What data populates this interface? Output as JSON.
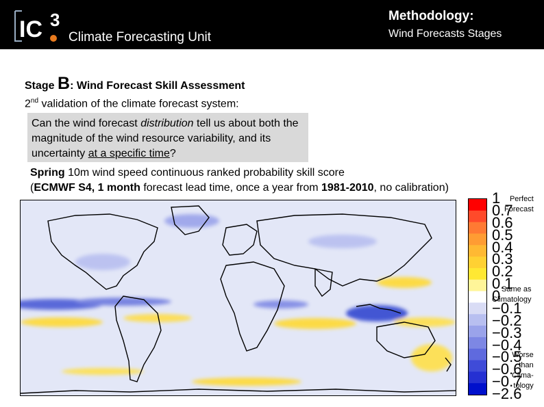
{
  "header": {
    "logo_text": "IC3",
    "unit": "Climate Forecasting Unit",
    "methodology_title": "Methodology:",
    "methodology_subtitle": "Wind Forecasts Stages"
  },
  "stage": {
    "prefix": "Stage",
    "letter": "B",
    "title": ": Wind Forecast Skill Assessment"
  },
  "validation": {
    "num": "2",
    "sup": "nd",
    "text": " validation of the climate forecast system:"
  },
  "question": {
    "p1": "Can the wind forecast ",
    "p2": "distribution",
    "p3": " tell us about both the magnitude of the wind resource variability, and its uncertainty ",
    "p4": "at a specific time",
    "p5": "?"
  },
  "caption": {
    "l1_bold": "Spring",
    "l1_rest": " 10m wind speed continuous ranked probability skill score",
    "l2_open": "(",
    "l2_b1": "ECMWF S4, 1 month",
    "l2_t1": " forecast lead time, once a year from ",
    "l2_b2": "1981-2010",
    "l2_t2": ", no calibration)"
  },
  "colorbar": {
    "ticks": [
      "1",
      "0.7",
      "0.6",
      "0.5",
      "0.4",
      "0.3",
      "0.2",
      "0.1",
      "0",
      "−0.1",
      "−0.2",
      "−0.3",
      "−0.4",
      "−0.5",
      "−0.6",
      "−0.7",
      "−2.6"
    ],
    "colors": [
      "#ff0000",
      "#ff4a2a",
      "#ff7a33",
      "#ff9c33",
      "#ffb933",
      "#ffd133",
      "#ffe833",
      "#fff599",
      "#ffffff",
      "#d9dcf5",
      "#b8bff0",
      "#9aa3ea",
      "#7d87e4",
      "#5f6ade",
      "#3f4bd8",
      "#2530d2",
      "#0010cc"
    ],
    "note_top": [
      "Perfect",
      "Forecast"
    ],
    "note_mid": [
      "Same as",
      "Climatology"
    ],
    "note_bottom": [
      "Worse",
      "than",
      "Clima-",
      "tology"
    ]
  }
}
